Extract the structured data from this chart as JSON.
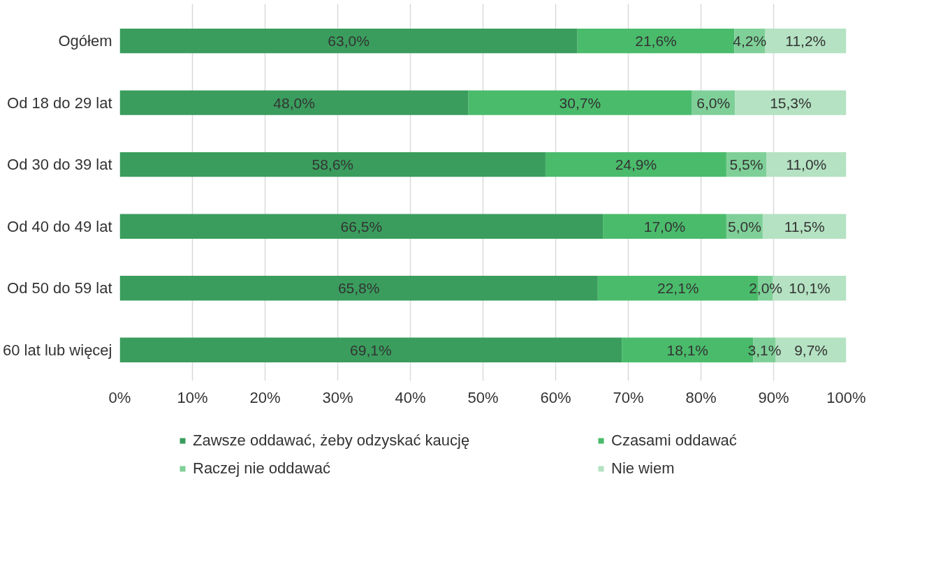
{
  "chart_data": {
    "type": "bar",
    "orientation": "horizontal",
    "stacked": true,
    "categories": [
      "Ogółem",
      "Od 18 do 29 lat",
      "Od 30 do 39 lat",
      "Od 40 do 49 lat",
      "Od 50 do 59 lat",
      "60 lat lub więcej"
    ],
    "series": [
      {
        "name": "Zawsze oddawać, żeby odzyskać kaucję",
        "color": "#3a9d5d",
        "values": [
          63.0,
          48.0,
          58.6,
          66.5,
          65.8,
          69.1
        ],
        "value_labels": [
          "63,0%",
          "48,0%",
          "58,6%",
          "66,5%",
          "65,8%",
          "69,1%"
        ]
      },
      {
        "name": "Czasami oddawać",
        "color": "#4abb6b",
        "values": [
          21.6,
          30.7,
          24.9,
          17.0,
          22.1,
          18.1
        ],
        "value_labels": [
          "21,6%",
          "30,7%",
          "24,9%",
          "17,0%",
          "22,1%",
          "18,1%"
        ]
      },
      {
        "name": "Raczej nie oddawać",
        "color": "#7fd098",
        "values": [
          4.2,
          6.0,
          5.5,
          5.0,
          2.0,
          3.1
        ],
        "value_labels": [
          "4,2%",
          "6,0%",
          "5,5%",
          "5,0%",
          "2,0%",
          "3,1%"
        ]
      },
      {
        "name": "Nie wiem",
        "color": "#b4e2c2",
        "values": [
          11.2,
          15.3,
          11.0,
          11.5,
          10.1,
          9.7
        ],
        "value_labels": [
          "11,2%",
          "15,3%",
          "11,0%",
          "11,5%",
          "10,1%",
          "9,7%"
        ]
      }
    ],
    "xlim": [
      0,
      100
    ],
    "xticks": [
      {
        "value": 0,
        "label": "0%"
      },
      {
        "value": 10,
        "label": "10%"
      },
      {
        "value": 20,
        "label": "20%"
      },
      {
        "value": 30,
        "label": "30%"
      },
      {
        "value": 40,
        "label": "40%"
      },
      {
        "value": 50,
        "label": "50%"
      },
      {
        "value": 60,
        "label": "60%"
      },
      {
        "value": 70,
        "label": "70%"
      },
      {
        "value": 80,
        "label": "80%"
      },
      {
        "value": 90,
        "label": "90%"
      },
      {
        "value": 100,
        "label": "100%"
      }
    ],
    "grid": "x",
    "legend": "bottom"
  }
}
